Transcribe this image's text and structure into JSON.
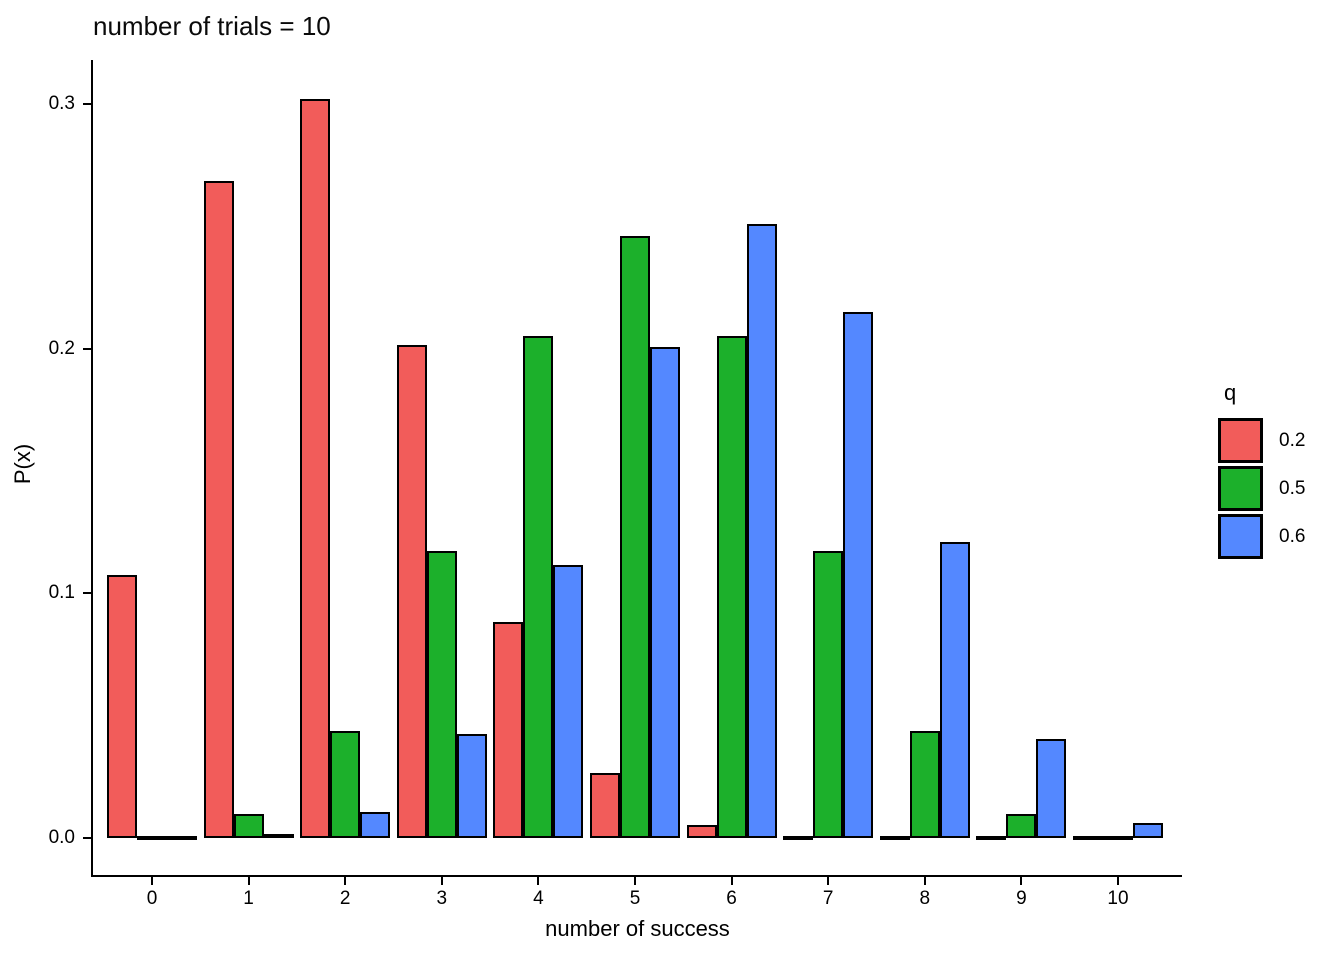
{
  "chart_data": {
    "type": "bar",
    "title": "number of trials = 10",
    "xlabel": "number of success",
    "ylabel": "P(x)",
    "categories": [
      "0",
      "1",
      "2",
      "3",
      "4",
      "5",
      "6",
      "7",
      "8",
      "9",
      "10"
    ],
    "series": [
      {
        "name": "0.2",
        "color": "#F25C5A",
        "values": [
          0.1074,
          0.2684,
          0.302,
          0.2013,
          0.0881,
          0.0264,
          0.0055,
          0.0008,
          0.0001,
          4e-06,
          1e-07
        ]
      },
      {
        "name": "0.5",
        "color": "#1CB02B",
        "values": [
          0.001,
          0.0098,
          0.0439,
          0.1172,
          0.2051,
          0.2461,
          0.2051,
          0.1172,
          0.0439,
          0.0098,
          0.001
        ]
      },
      {
        "name": "0.6",
        "color": "#5488FF",
        "values": [
          0.0001,
          0.0016,
          0.0106,
          0.0425,
          0.1115,
          0.2007,
          0.2508,
          0.215,
          0.1209,
          0.0403,
          0.006
        ]
      }
    ],
    "legend": {
      "title": "q",
      "position": "right"
    },
    "y_ticks": [
      "0.0",
      "0.1",
      "0.2",
      "0.3"
    ],
    "ylim": [
      0,
      0.31
    ],
    "grid": false,
    "bar_outline_color": "#000000",
    "background_color": "#ffffff"
  }
}
